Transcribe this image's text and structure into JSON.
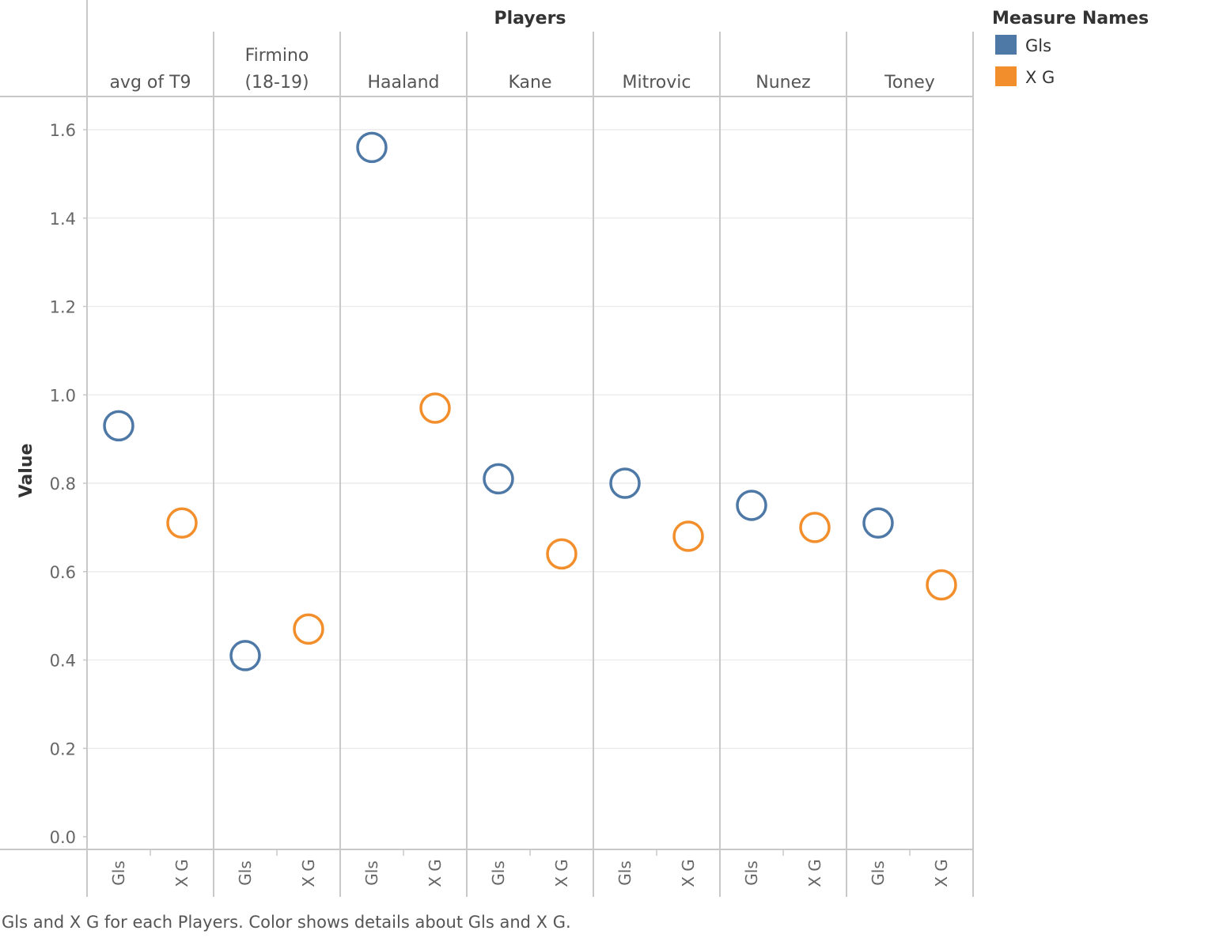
{
  "chart_data": {
    "type": "scatter",
    "column_title": "Players",
    "ylabel": "Value",
    "ylim": [
      0,
      1.6
    ],
    "yticks": [
      "0.0",
      "0.2",
      "0.4",
      "0.6",
      "0.8",
      "1.0",
      "1.2",
      "1.4",
      "1.6"
    ],
    "players": [
      {
        "name": "avg of T9",
        "lines": [
          "avg of T9"
        ]
      },
      {
        "name": "Firmino (18-19)",
        "lines": [
          "Firmino",
          "(18-19)"
        ]
      },
      {
        "name": "Haaland",
        "lines": [
          "Haaland"
        ]
      },
      {
        "name": "Kane",
        "lines": [
          "Kane"
        ]
      },
      {
        "name": "Mitrovic",
        "lines": [
          "Mitrovic"
        ]
      },
      {
        "name": "Nunez",
        "lines": [
          "Nunez"
        ]
      },
      {
        "name": "Toney",
        "lines": [
          "Toney"
        ]
      }
    ],
    "measures": [
      "Gls",
      "X G"
    ],
    "series": [
      {
        "name": "Gls",
        "color": "#4e79a7",
        "values": [
          0.93,
          0.41,
          1.56,
          0.81,
          0.8,
          0.75,
          0.71
        ]
      },
      {
        "name": "X G",
        "color": "#f28e2b",
        "values": [
          0.71,
          0.47,
          0.97,
          0.64,
          0.68,
          0.7,
          0.57
        ]
      }
    ],
    "legend": {
      "title": "Measure Names",
      "placement": "top-right"
    },
    "grid": true
  },
  "caption": "Gls and X G for each Players.  Color shows details about Gls and X G."
}
